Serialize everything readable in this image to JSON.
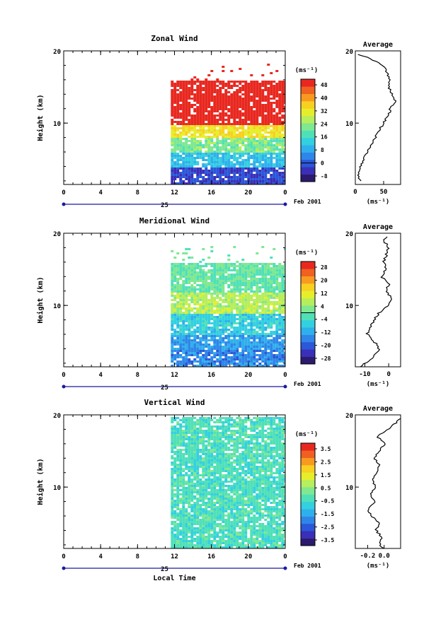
{
  "colors": {
    "palette": [
      "#2b1a6e",
      "#3a2fb8",
      "#2b57d8",
      "#2f86e8",
      "#2fb0ec",
      "#33d0e0",
      "#50e0b8",
      "#7fe890",
      "#b6ee5c",
      "#e6ee2c",
      "#f8d020",
      "#f89a20",
      "#f06020",
      "#e82820"
    ]
  },
  "panels": [
    {
      "title": "Zonal Wind",
      "ylabel": "Height (km)",
      "yticks": [
        "20",
        "10"
      ],
      "xticks": [
        "0",
        "4",
        "8",
        "12",
        "16",
        "20",
        "0"
      ],
      "day_label": "25",
      "date_label": "Feb 2001",
      "xlabel": "",
      "colorbar_unit": "(ms⁻¹)",
      "colorbar_ticks": [
        "48",
        "40",
        "32",
        "24",
        "16",
        "8",
        "0",
        "-8"
      ],
      "profile_title": "Average",
      "profile_yticks": [
        "20",
        "10"
      ],
      "profile_xticks": [
        "0",
        "50"
      ],
      "profile_unit": "(ms⁻¹)"
    },
    {
      "title": "Meridional Wind",
      "ylabel": "Height (km)",
      "yticks": [
        "20",
        "10"
      ],
      "xticks": [
        "0",
        "4",
        "8",
        "12",
        "16",
        "20",
        "0"
      ],
      "day_label": "25",
      "date_label": "Feb 2001",
      "xlabel": "",
      "colorbar_unit": "(ms⁻¹)",
      "colorbar_ticks": [
        "28",
        "20",
        "12",
        "4",
        "-4",
        "-12",
        "-20",
        "-28"
      ],
      "profile_title": "Average",
      "profile_yticks": [
        "20",
        "10"
      ],
      "profile_xticks": [
        "-10",
        "0"
      ],
      "profile_unit": "(ms⁻¹)"
    },
    {
      "title": "Vertical Wind",
      "ylabel": "Height (km)",
      "yticks": [
        "20",
        "10"
      ],
      "xticks": [
        "0",
        "4",
        "8",
        "12",
        "16",
        "20",
        "0"
      ],
      "day_label": "25",
      "date_label": "Feb 2001",
      "xlabel": "Local Time",
      "colorbar_unit": "(ms⁻¹)",
      "colorbar_ticks": [
        "3.5",
        "2.5",
        "1.5",
        "0.5",
        "-0.5",
        "-1.5",
        "-2.5",
        "-3.5"
      ],
      "profile_title": "Average",
      "profile_yticks": [
        "20",
        "10"
      ],
      "profile_xticks": [
        "-0.2",
        "0.0"
      ],
      "profile_unit": "(ms⁻¹)"
    }
  ],
  "chart_data": [
    {
      "type": "heatmap",
      "title": "Zonal Wind",
      "xlabel": "",
      "ylabel": "Height (km)",
      "xlim": [
        0,
        24
      ],
      "ylim": [
        1.5,
        20
      ],
      "data_time_range": [
        11.6,
        24
      ],
      "colorbar_levels": [
        -8,
        0,
        8,
        16,
        24,
        32,
        40,
        48
      ],
      "height_bands": [
        {
          "z": [
            1.5,
            4
          ],
          "value": 0
        },
        {
          "z": [
            4,
            6
          ],
          "value": 12
        },
        {
          "z": [
            6,
            8
          ],
          "value": 22
        },
        {
          "z": [
            8,
            10
          ],
          "value": 32
        },
        {
          "z": [
            10,
            13
          ],
          "value": 50
        },
        {
          "z": [
            13,
            16
          ],
          "value": 48
        }
      ],
      "profile": {
        "title": "Average",
        "xlim": [
          0,
          80
        ],
        "z": [
          2,
          3,
          4,
          5,
          6,
          7,
          8,
          9,
          10,
          11,
          12,
          13,
          14,
          15,
          16,
          17,
          18,
          19,
          19.5
        ],
        "values": [
          8,
          6,
          10,
          14,
          22,
          28,
          35,
          42,
          50,
          58,
          62,
          70,
          66,
          58,
          62,
          55,
          50,
          25,
          5
        ]
      }
    },
    {
      "type": "heatmap",
      "title": "Meridional Wind",
      "xlabel": "",
      "ylabel": "Height (km)",
      "xlim": [
        0,
        24
      ],
      "ylim": [
        1.5,
        20
      ],
      "data_time_range": [
        11.6,
        24
      ],
      "colorbar_levels": [
        -28,
        -20,
        -12,
        -4,
        4,
        12,
        20,
        28
      ],
      "height_bands": [
        {
          "z": [
            1.5,
            4
          ],
          "value": -14
        },
        {
          "z": [
            4,
            6
          ],
          "value": -12
        },
        {
          "z": [
            6,
            9
          ],
          "value": -6
        },
        {
          "z": [
            9,
            12
          ],
          "value": 6
        },
        {
          "z": [
            12,
            16
          ],
          "value": 0
        }
      ],
      "profile": {
        "title": "Average",
        "xlim": [
          -14,
          5
        ],
        "z": [
          1.5,
          2,
          3,
          4,
          5,
          6,
          7,
          8,
          9,
          10,
          11,
          12,
          13,
          14,
          15,
          16,
          17,
          18,
          19,
          19.5
        ],
        "values": [
          -12,
          -10,
          -6,
          -4,
          -6,
          -9,
          -8,
          -6,
          -4,
          0,
          1,
          -1,
          0,
          -3,
          -1,
          -2,
          -1,
          0,
          -2,
          -1
        ]
      }
    },
    {
      "type": "heatmap",
      "title": "Vertical Wind",
      "xlabel": "Local Time",
      "ylabel": "Height (km)",
      "xlim": [
        0,
        24
      ],
      "ylim": [
        1.5,
        20
      ],
      "data_time_range": [
        11.6,
        24
      ],
      "colorbar_levels": [
        -3.5,
        -2.5,
        -1.5,
        -0.5,
        0.5,
        1.5,
        2.5,
        3.5
      ],
      "height_bands": [
        {
          "z": [
            1.5,
            20
          ],
          "value": -0.3
        }
      ],
      "profile": {
        "title": "Average",
        "xlim": [
          -0.35,
          0.2
        ],
        "z": [
          1.5,
          2,
          3,
          4,
          5,
          6,
          7,
          8,
          9,
          10,
          11,
          12,
          13,
          14,
          15,
          16,
          17,
          18,
          19,
          19.5
        ],
        "values": [
          0.0,
          -0.05,
          -0.02,
          -0.1,
          -0.05,
          -0.15,
          -0.2,
          -0.1,
          -0.18,
          -0.1,
          -0.15,
          -0.1,
          -0.05,
          -0.12,
          -0.05,
          0.0,
          -0.08,
          0.05,
          0.15,
          0.2
        ]
      }
    }
  ]
}
